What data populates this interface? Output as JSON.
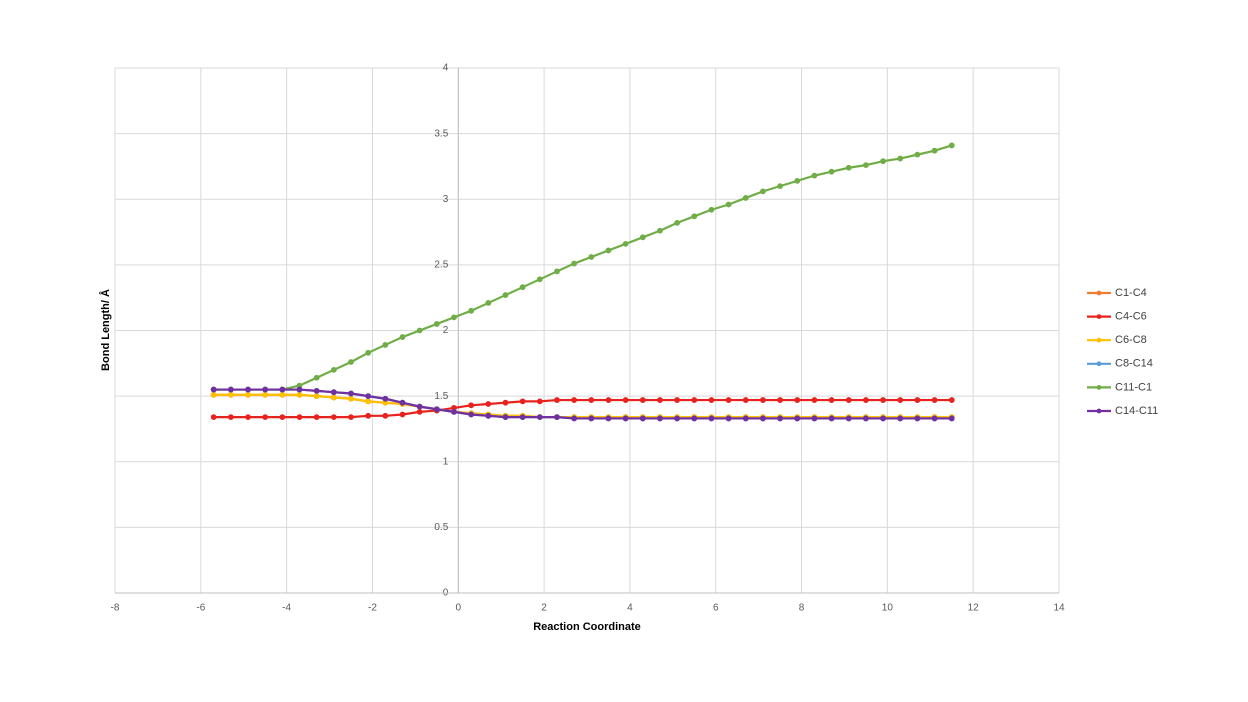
{
  "chart_data": {
    "type": "line",
    "x_label": "Reaction Coordinate",
    "y_label": "Bond Length/ Å",
    "x": [
      -5.7,
      -5.3,
      -4.9,
      -4.5,
      -4.1,
      -3.7,
      -3.3,
      -2.9,
      -2.5,
      -2.1,
      -1.7,
      -1.3,
      -0.9,
      -0.5,
      -0.1,
      0.3,
      0.7,
      1.1,
      1.5,
      1.9,
      2.3,
      2.7,
      3.1,
      3.5,
      3.9,
      4.3,
      4.7,
      5.1,
      5.5,
      5.9,
      6.3,
      6.7,
      7.1,
      7.5,
      7.9,
      8.3,
      8.7,
      9.1,
      9.5,
      9.9,
      10.3,
      10.7,
      11.1,
      11.5
    ],
    "series": [
      {
        "name": "C1-C4",
        "color": "#ed7d31",
        "values": [
          1.51,
          1.51,
          1.51,
          1.51,
          1.51,
          1.51,
          1.5,
          1.49,
          1.48,
          1.46,
          1.45,
          1.44,
          1.42,
          1.4,
          1.38,
          1.37,
          1.36,
          1.35,
          1.35,
          1.34,
          1.34,
          1.34,
          1.34,
          1.34,
          1.34,
          1.34,
          1.34,
          1.34,
          1.34,
          1.34,
          1.34,
          1.34,
          1.34,
          1.34,
          1.34,
          1.34,
          1.34,
          1.34,
          1.34,
          1.34,
          1.34,
          1.34,
          1.34,
          1.34
        ]
      },
      {
        "name": "C4-C6",
        "color": "#e8221d",
        "values": [
          1.34,
          1.34,
          1.34,
          1.34,
          1.34,
          1.34,
          1.34,
          1.34,
          1.34,
          1.35,
          1.35,
          1.36,
          1.38,
          1.39,
          1.41,
          1.43,
          1.44,
          1.45,
          1.46,
          1.46,
          1.47,
          1.47,
          1.47,
          1.47,
          1.47,
          1.47,
          1.47,
          1.47,
          1.47,
          1.47,
          1.47,
          1.47,
          1.47,
          1.47,
          1.47,
          1.47,
          1.47,
          1.47,
          1.47,
          1.47,
          1.47,
          1.47,
          1.47,
          1.47
        ]
      },
      {
        "name": "C6-C8",
        "color": "#ffc000",
        "values": [
          1.51,
          1.51,
          1.51,
          1.51,
          1.51,
          1.51,
          1.5,
          1.49,
          1.48,
          1.46,
          1.45,
          1.44,
          1.42,
          1.4,
          1.38,
          1.37,
          1.36,
          1.35,
          1.35,
          1.34,
          1.34,
          1.34,
          1.34,
          1.34,
          1.34,
          1.34,
          1.34,
          1.34,
          1.34,
          1.34,
          1.34,
          1.34,
          1.34,
          1.34,
          1.34,
          1.34,
          1.34,
          1.34,
          1.34,
          1.34,
          1.34,
          1.34,
          1.34,
          1.34
        ]
      },
      {
        "name": "C8-C14",
        "color": "#5b9bd5",
        "values": [
          1.55,
          1.55,
          1.55,
          1.55,
          1.55,
          1.55,
          1.54,
          1.53,
          1.52,
          1.5,
          1.48,
          1.45,
          1.42,
          1.4,
          1.38,
          1.36,
          1.35,
          1.34,
          1.34,
          1.34,
          1.34,
          1.33,
          1.33,
          1.33,
          1.33,
          1.33,
          1.33,
          1.33,
          1.33,
          1.33,
          1.33,
          1.33,
          1.33,
          1.33,
          1.33,
          1.33,
          1.33,
          1.33,
          1.33,
          1.33,
          1.33,
          1.33,
          1.33,
          1.33
        ]
      },
      {
        "name": "C11-C1",
        "color": "#70ad47",
        "values": [
          1.55,
          1.55,
          1.55,
          1.55,
          1.55,
          1.58,
          1.64,
          1.7,
          1.76,
          1.83,
          1.89,
          1.95,
          2.0,
          2.05,
          2.1,
          2.15,
          2.21,
          2.27,
          2.33,
          2.39,
          2.45,
          2.51,
          2.56,
          2.61,
          2.66,
          2.71,
          2.76,
          2.82,
          2.87,
          2.92,
          2.96,
          3.01,
          3.06,
          3.1,
          3.14,
          3.18,
          3.21,
          3.24,
          3.26,
          3.29,
          3.31,
          3.34,
          3.37,
          3.41
        ]
      },
      {
        "name": "C14-C11",
        "color": "#7030a0",
        "values": [
          1.55,
          1.55,
          1.55,
          1.55,
          1.55,
          1.55,
          1.54,
          1.53,
          1.52,
          1.5,
          1.48,
          1.45,
          1.42,
          1.4,
          1.38,
          1.36,
          1.35,
          1.34,
          1.34,
          1.34,
          1.34,
          1.33,
          1.33,
          1.33,
          1.33,
          1.33,
          1.33,
          1.33,
          1.33,
          1.33,
          1.33,
          1.33,
          1.33,
          1.33,
          1.33,
          1.33,
          1.33,
          1.33,
          1.33,
          1.33,
          1.33,
          1.33,
          1.33,
          1.33
        ]
      }
    ],
    "xlim": [
      -8,
      14
    ],
    "xticks": [
      -8,
      -6,
      -4,
      -2,
      0,
      2,
      4,
      6,
      8,
      10,
      12,
      14
    ],
    "ylim": [
      0,
      4
    ],
    "yticks": [
      0,
      0.5,
      1,
      1.5,
      2,
      2.5,
      3,
      3.5,
      4
    ],
    "grid": true,
    "legend": "right"
  }
}
